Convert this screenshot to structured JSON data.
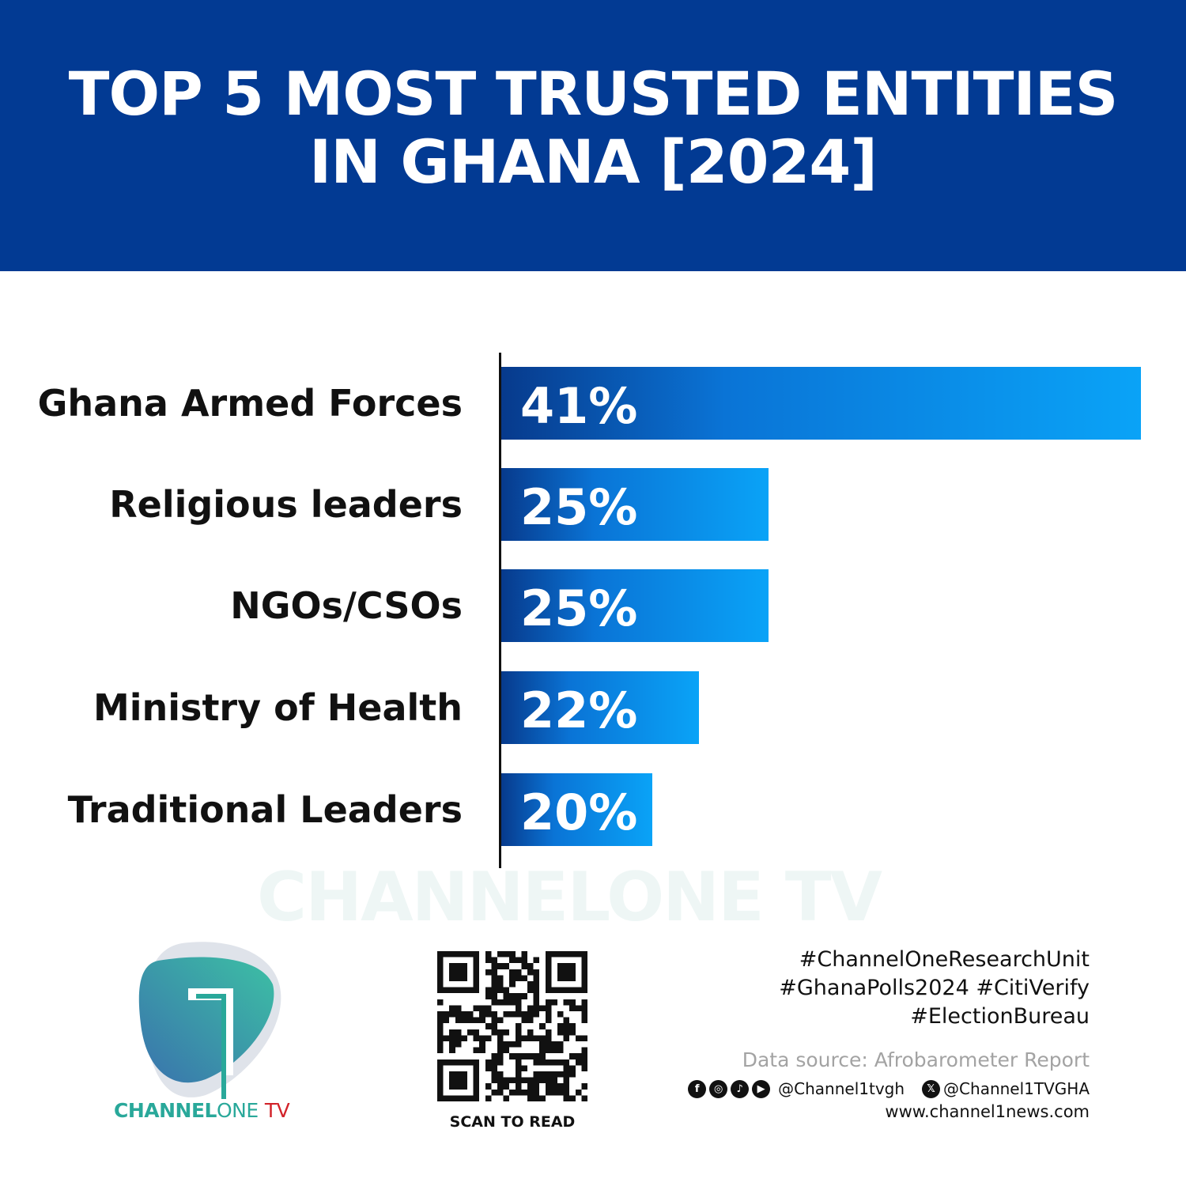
{
  "header": {
    "title_line1": "TOP 5 MOST TRUSTED ENTITIES",
    "title_line2": "IN GHANA [2024]"
  },
  "chart_data": {
    "type": "bar",
    "orientation": "horizontal",
    "title": "TOP 5 MOST TRUSTED ENTITIES IN GHANA [2024]",
    "categories": [
      "Ghana Armed Forces",
      "Religious leaders",
      "NGOs/CSOs",
      "Ministry of Health",
      "Traditional Leaders"
    ],
    "values": [
      41,
      25,
      25,
      22,
      20
    ],
    "value_labels": [
      "41%",
      "25%",
      "25%",
      "22%",
      "20%"
    ],
    "xlim": [
      13.5,
      41
    ],
    "grid": false,
    "legend": "none",
    "colors": {
      "bar_start": "#073a8c",
      "bar_end": "#0aa3f7"
    }
  },
  "watermark": "CHANNELONE TV",
  "logo": {
    "bold": "CHANNEL",
    "thin": "ONE",
    "tv": "TV",
    "accent": "#29a89a"
  },
  "qr": {
    "caption": "SCAN TO READ"
  },
  "footer": {
    "tags": [
      "#ChannelOneResearchUnit",
      "#GhanaPolls2024 #CitiVerify",
      "#ElectionBureau"
    ],
    "source": "Data source: Afrobarometer Report",
    "social_icons": [
      "facebook-icon",
      "instagram-icon",
      "tiktok-icon",
      "youtube-icon"
    ],
    "handle1": "@Channel1tvgh",
    "handle2": "@Channel1TVGHA",
    "website": "www.channel1news.com"
  }
}
